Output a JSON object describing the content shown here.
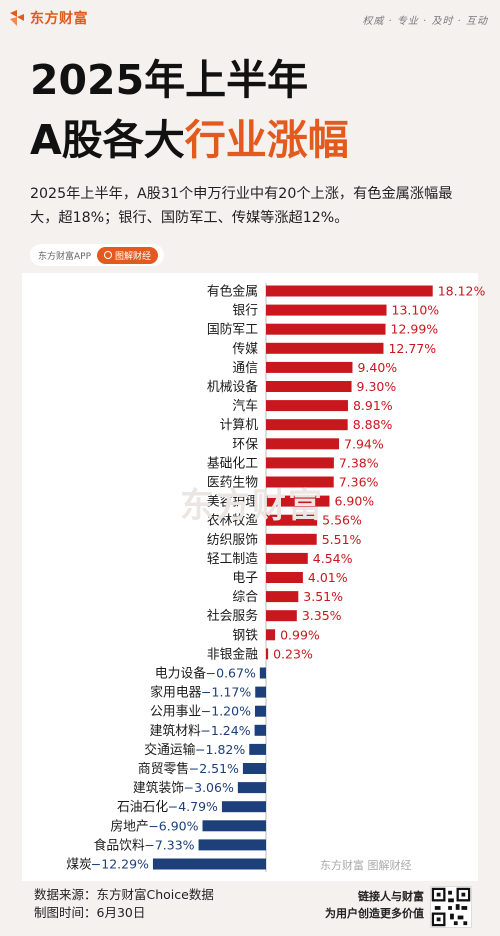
{
  "header": {
    "brand_name": "东方财富",
    "brand_icon": "eastmoney-logo-icon",
    "slogan": "权威 · 专业 · 及时 · 互动"
  },
  "title": {
    "line1": "2025年上半年",
    "line2_prefix": "A股各大",
    "line2_accent": "行业涨幅"
  },
  "summary": "2025年上半年，A股31个申万行业中有20个上涨，有色金属涨幅最大，超18%；银行、国防军工、传媒等涨超12%。",
  "tags": {
    "app": "东方财富APP",
    "pill": "图解财经"
  },
  "colors": {
    "accent": "#e35a1f",
    "positive": "#c8181d",
    "negative": "#1d3f7a"
  },
  "watermark": "东方财富",
  "bottom_logo": "东方财富 图解财经",
  "footer": {
    "source": "数据来源：东方财富Choice数据",
    "date": "制图时间：6月30日",
    "promo_line1": "链接人与财富",
    "promo_line2": "为用户创造更多价值",
    "qr_icon": "qr-code-icon"
  },
  "chart_data": {
    "type": "bar",
    "orientation": "horizontal",
    "categories": [
      "有色金属",
      "银行",
      "国防军工",
      "传媒",
      "通信",
      "机械设备",
      "汽车",
      "计算机",
      "环保",
      "基础化工",
      "医药生物",
      "美容护理",
      "农林牧渔",
      "纺织服饰",
      "轻工制造",
      "电子",
      "综合",
      "社会服务",
      "钢铁",
      "非银金融",
      "电力设备",
      "家用电器",
      "公用事业",
      "建筑材料",
      "交通运输",
      "商贸零售",
      "建筑装饰",
      "石油石化",
      "房地产",
      "食品饮料",
      "煤炭"
    ],
    "values": [
      18.12,
      13.1,
      12.99,
      12.77,
      9.4,
      9.3,
      8.91,
      8.88,
      7.94,
      7.38,
      7.36,
      6.9,
      5.56,
      5.51,
      4.54,
      4.01,
      3.51,
      3.35,
      0.99,
      0.23,
      -0.67,
      -1.17,
      -1.2,
      -1.24,
      -1.82,
      -2.51,
      -3.06,
      -4.79,
      -6.9,
      -7.33,
      -12.29
    ],
    "value_labels": [
      "18.12%",
      "13.10%",
      "12.99%",
      "12.77%",
      "9.40%",
      "9.30%",
      "8.91%",
      "8.88%",
      "7.94%",
      "7.38%",
      "7.36%",
      "6.90%",
      "5.56%",
      "5.51%",
      "4.54%",
      "4.01%",
      "3.51%",
      "3.35%",
      "0.99%",
      "0.23%",
      "−0.67%",
      "−1.17%",
      "−1.20%",
      "−1.24%",
      "−1.82%",
      "−2.51%",
      "−3.06%",
      "−4.79%",
      "−6.90%",
      "−7.33%",
      "−12.29%"
    ],
    "title": "",
    "xlabel": "",
    "ylabel": "",
    "grid": false,
    "legend": "none"
  }
}
